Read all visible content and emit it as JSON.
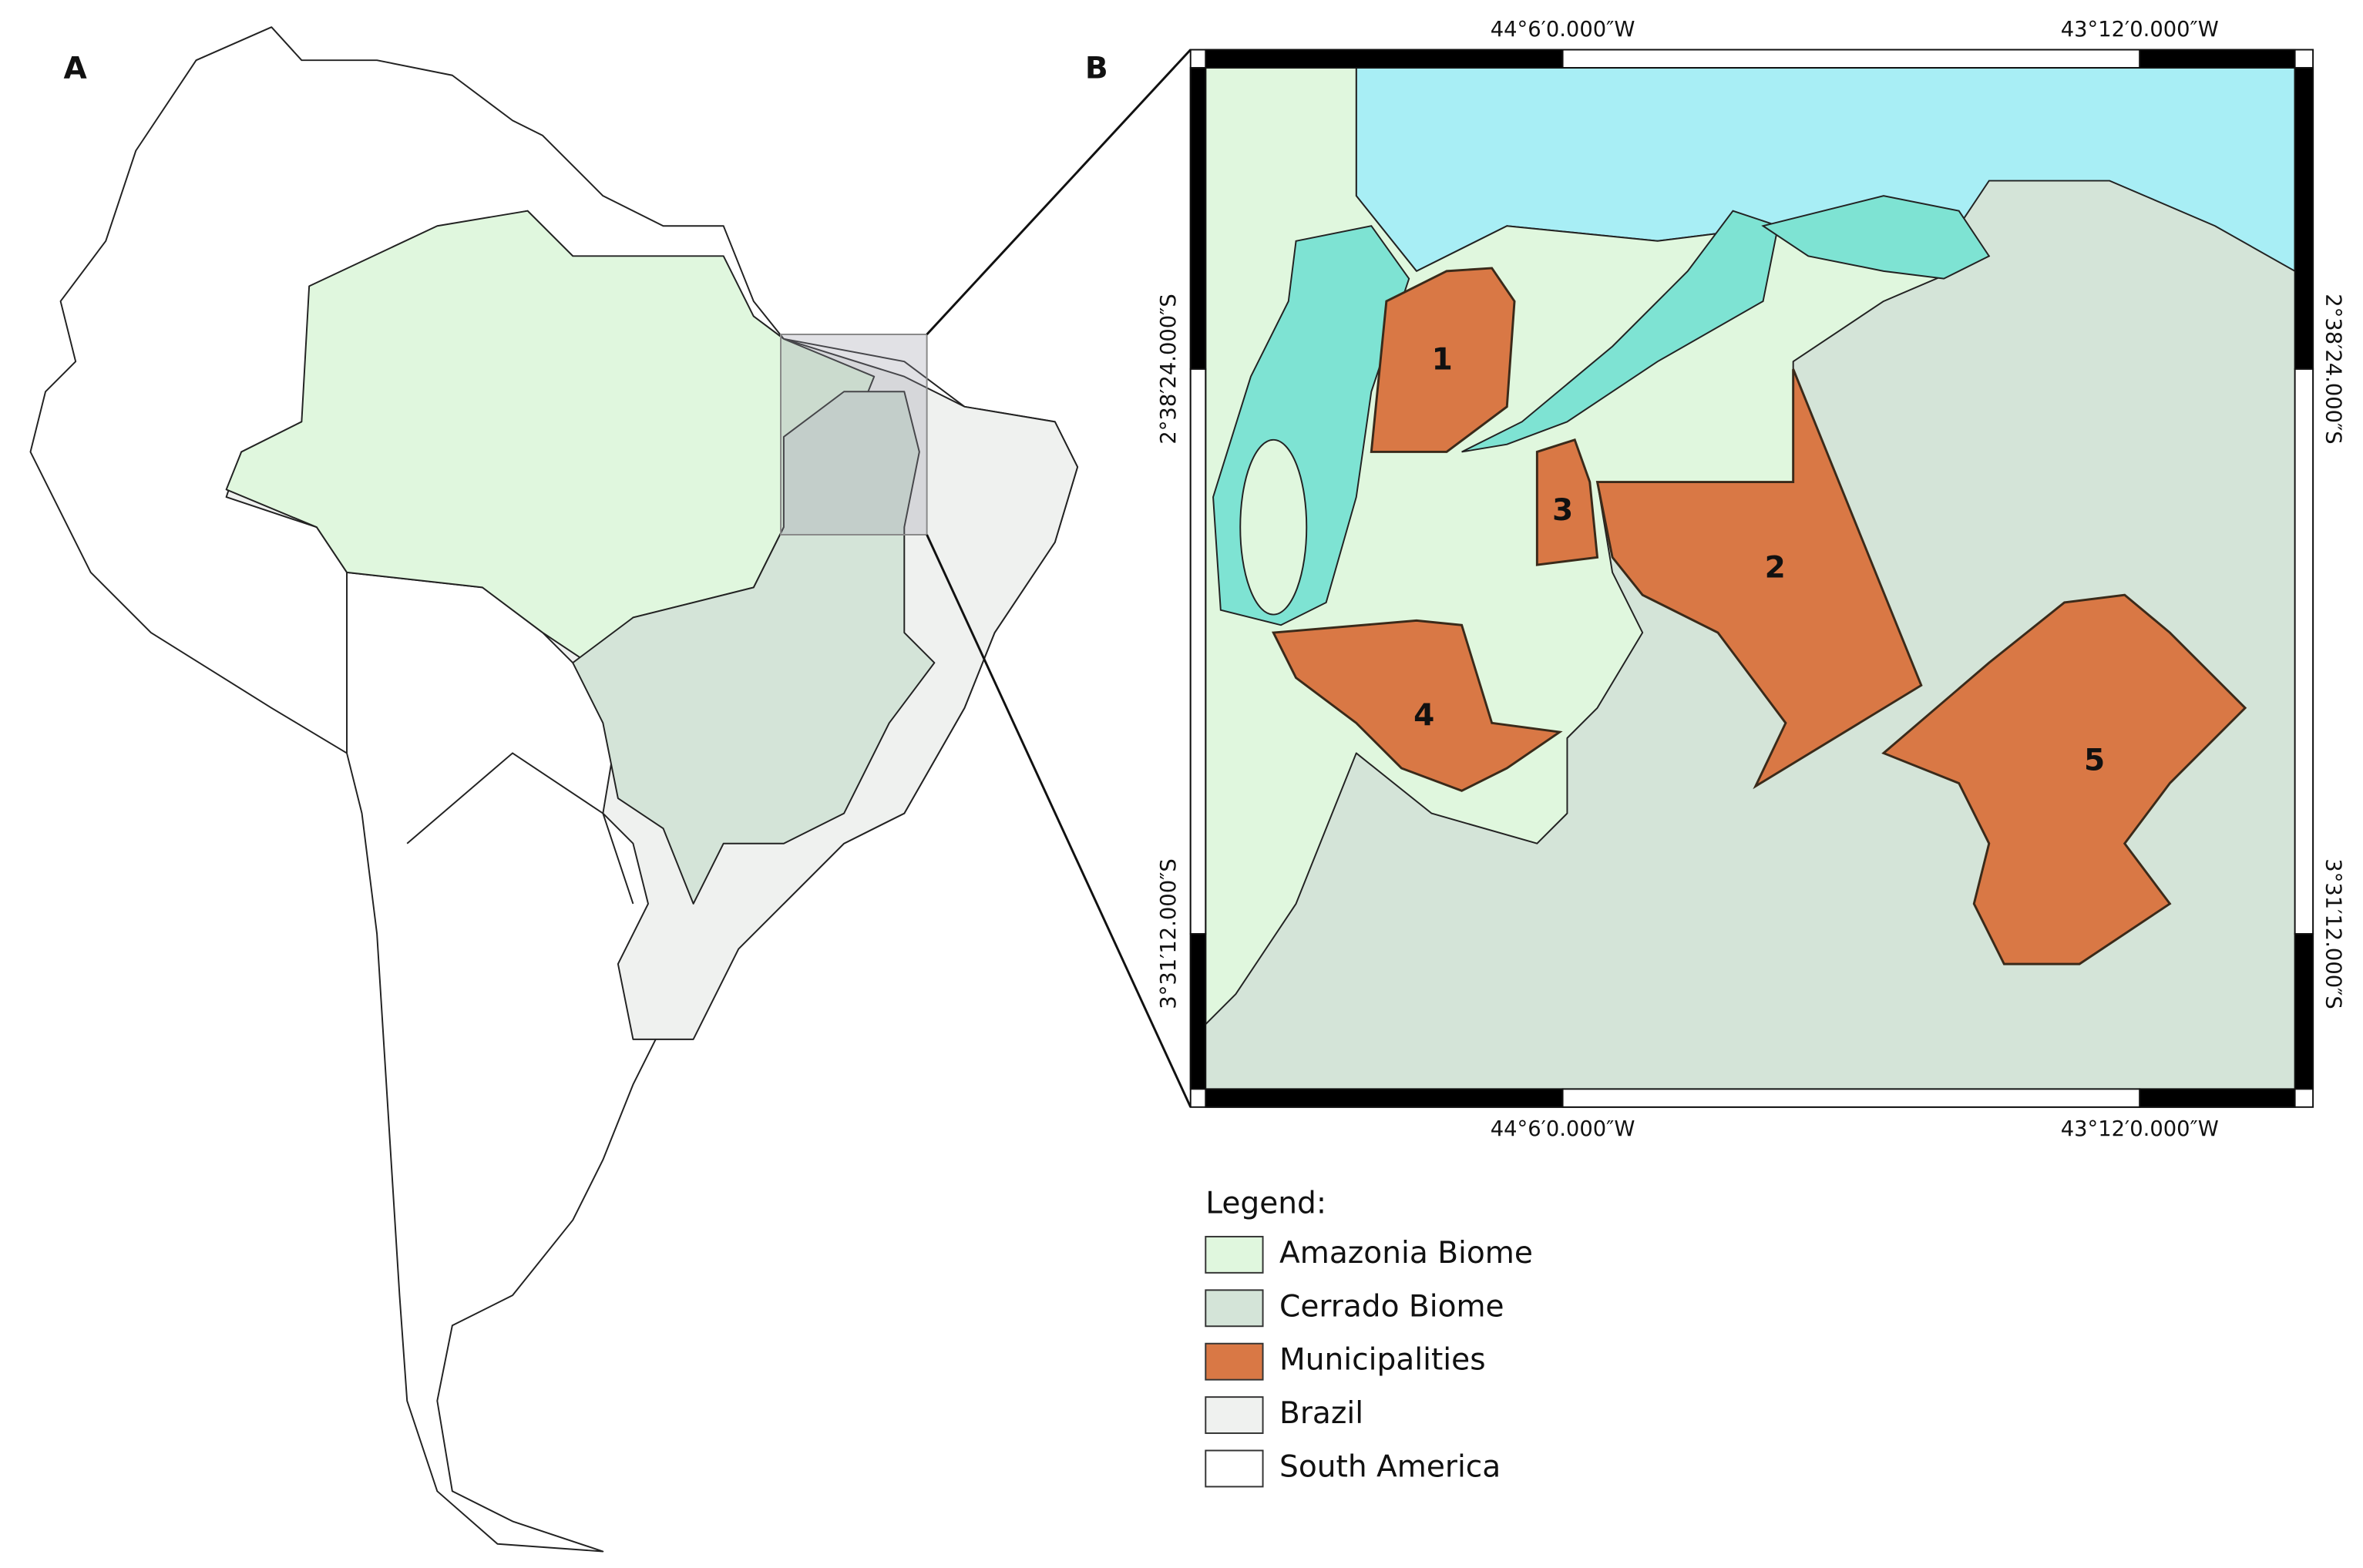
{
  "panel_a": {
    "label": "A"
  },
  "panel_b": {
    "label": "B",
    "top_labels": [
      "44°6′0.000″W",
      "43°12′0.000″W"
    ],
    "bottom_labels": [
      "44°6′0.000″W",
      "43°12′0.000″W"
    ],
    "left_labels": [
      "2°38′24.000″S",
      "3°31′12.000″S"
    ],
    "right_labels": [
      "2°38′24.000″S",
      "3°31′12.000″S"
    ],
    "municipalities": [
      "1",
      "2",
      "3",
      "4",
      "5"
    ]
  },
  "legend": {
    "title": "Legend:",
    "items": [
      {
        "label": "Amazonia Biome",
        "color": "#e0f7de"
      },
      {
        "label": "Cerrado Biome",
        "color": "#d4e4d8"
      },
      {
        "label": "Municipalities",
        "color": "#d97845"
      },
      {
        "label": "Brazil",
        "color": "#eff1ef"
      },
      {
        "label": "South America",
        "color": "#ffffff"
      }
    ]
  }
}
